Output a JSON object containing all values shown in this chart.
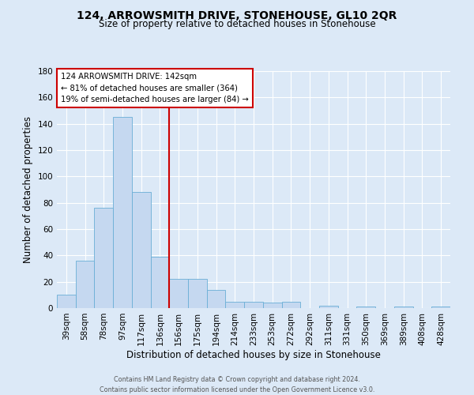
{
  "title": "124, ARROWSMITH DRIVE, STONEHOUSE, GL10 2QR",
  "subtitle": "Size of property relative to detached houses in Stonehouse",
  "xlabel": "Distribution of detached houses by size in Stonehouse",
  "ylabel": "Number of detached properties",
  "bar_labels": [
    "39sqm",
    "58sqm",
    "78sqm",
    "97sqm",
    "117sqm",
    "136sqm",
    "156sqm",
    "175sqm",
    "194sqm",
    "214sqm",
    "233sqm",
    "253sqm",
    "272sqm",
    "292sqm",
    "311sqm",
    "331sqm",
    "350sqm",
    "369sqm",
    "389sqm",
    "408sqm",
    "428sqm"
  ],
  "bar_values": [
    10,
    36,
    76,
    145,
    88,
    39,
    22,
    22,
    14,
    5,
    5,
    4,
    5,
    0,
    2,
    0,
    1,
    0,
    1,
    0,
    1
  ],
  "bar_color": "#c5d8f0",
  "bar_edge_color": "#6aaed6",
  "vline_x": 5.5,
  "vline_color": "#cc0000",
  "ylim": [
    0,
    180
  ],
  "yticks": [
    0,
    20,
    40,
    60,
    80,
    100,
    120,
    140,
    160,
    180
  ],
  "annotation_title": "124 ARROWSMITH DRIVE: 142sqm",
  "annotation_line1": "← 81% of detached houses are smaller (364)",
  "annotation_line2": "19% of semi-detached houses are larger (84) →",
  "annotation_box_color": "#ffffff",
  "annotation_box_edge": "#cc0000",
  "footer1": "Contains HM Land Registry data © Crown copyright and database right 2024.",
  "footer2": "Contains public sector information licensed under the Open Government Licence v3.0.",
  "bg_color": "#dce9f7",
  "plot_bg_color": "#dce9f7",
  "grid_color": "#ffffff",
  "title_fontsize": 10,
  "subtitle_fontsize": 8.5,
  "axis_label_fontsize": 8.5,
  "tick_fontsize": 7.5,
  "annotation_fontsize": 7.2,
  "footer_fontsize": 5.8
}
